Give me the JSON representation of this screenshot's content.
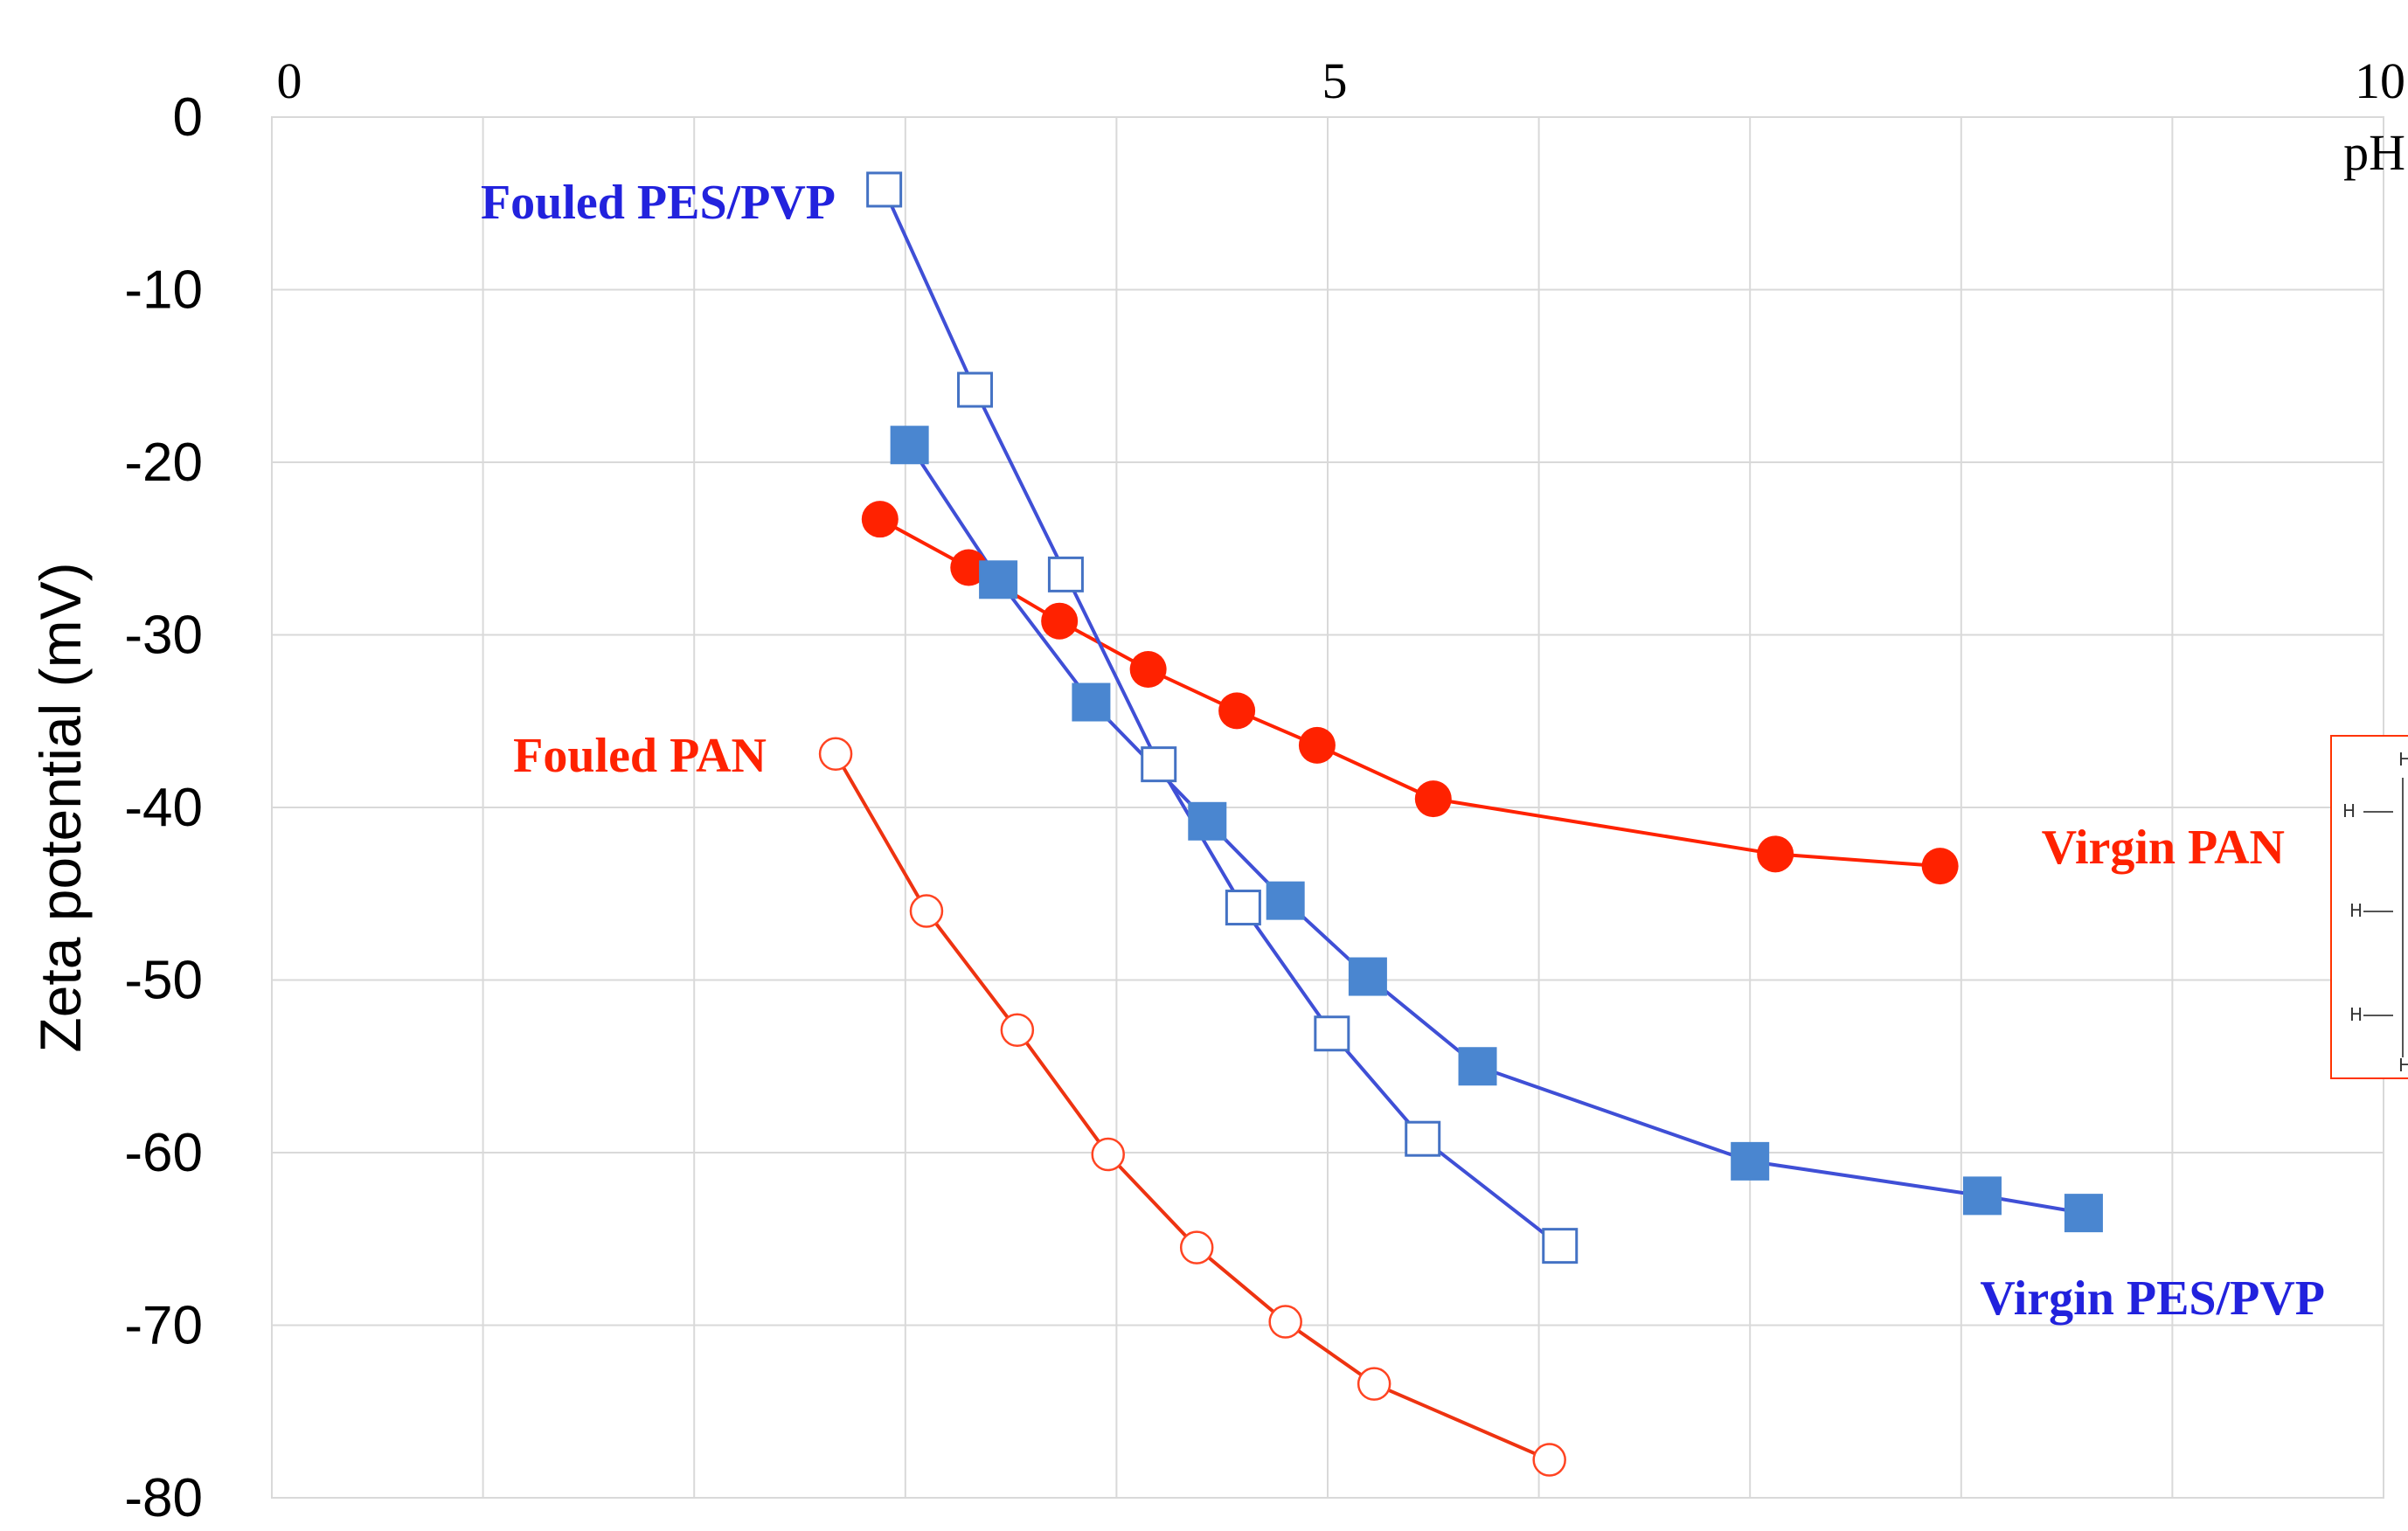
{
  "chart_data": {
    "type": "scatter",
    "xlabel": "pH",
    "ylabel": "Zeta potential (mV)",
    "xlim": [
      0,
      10
    ],
    "ylim": [
      -80,
      0
    ],
    "x_ticks": [
      0,
      5,
      10
    ],
    "y_ticks": [
      0,
      -10,
      -20,
      -30,
      -40,
      -50,
      -60,
      -70,
      -80
    ],
    "grid": true,
    "x_axis_position": "top",
    "series": [
      {
        "name": "Fouled PES/PVP",
        "color": "#4472c4",
        "line_color": "#3f4fd6",
        "label_color": "#2222dd",
        "marker": "open-square",
        "x": [
          2.9,
          3.33,
          3.76,
          4.2,
          4.6,
          5.02,
          5.45,
          6.1
        ],
        "y": [
          -4.2,
          -15.8,
          -26.5,
          -37.5,
          -45.8,
          -53.1,
          -59.2,
          -65.4
        ]
      },
      {
        "name": "Virgin PES/PVP",
        "color": "#4a86d0",
        "line_color": "#3f4fd6",
        "label_color": "#2222dd",
        "marker": "filled-square",
        "x": [
          3.02,
          3.44,
          3.88,
          4.43,
          4.8,
          5.19,
          5.71,
          7.0,
          8.1,
          8.58
        ],
        "y": [
          -19.0,
          -26.8,
          -33.9,
          -40.8,
          -45.4,
          -49.8,
          -55.0,
          -60.5,
          -62.5,
          -63.5
        ]
      },
      {
        "name": "Virgin PAN",
        "color": "#ff2200",
        "line_color": "#ff2200",
        "label_color": "#ff2200",
        "marker": "filled-circle",
        "x": [
          2.88,
          3.3,
          3.73,
          4.15,
          4.57,
          4.95,
          5.5,
          7.12,
          7.9
        ],
        "y": [
          -23.3,
          -26.1,
          -29.2,
          -32.0,
          -34.4,
          -36.4,
          -39.5,
          -42.7,
          -43.4
        ]
      },
      {
        "name": "Fouled PAN",
        "color": "#ff4422",
        "line_color": "#ee3311",
        "label_color": "#ff2200",
        "marker": "open-circle",
        "x": [
          2.67,
          3.1,
          3.53,
          3.96,
          4.38,
          4.8,
          5.22,
          6.05
        ],
        "y": [
          -36.9,
          -46.0,
          -52.9,
          -60.1,
          -65.5,
          -69.8,
          -73.4,
          -77.8
        ]
      }
    ],
    "inset": {
      "description": "partial chemical structure (cropped at right edge)",
      "atom_labels": [
        "H",
        "H",
        "H",
        "H",
        "H"
      ]
    }
  }
}
